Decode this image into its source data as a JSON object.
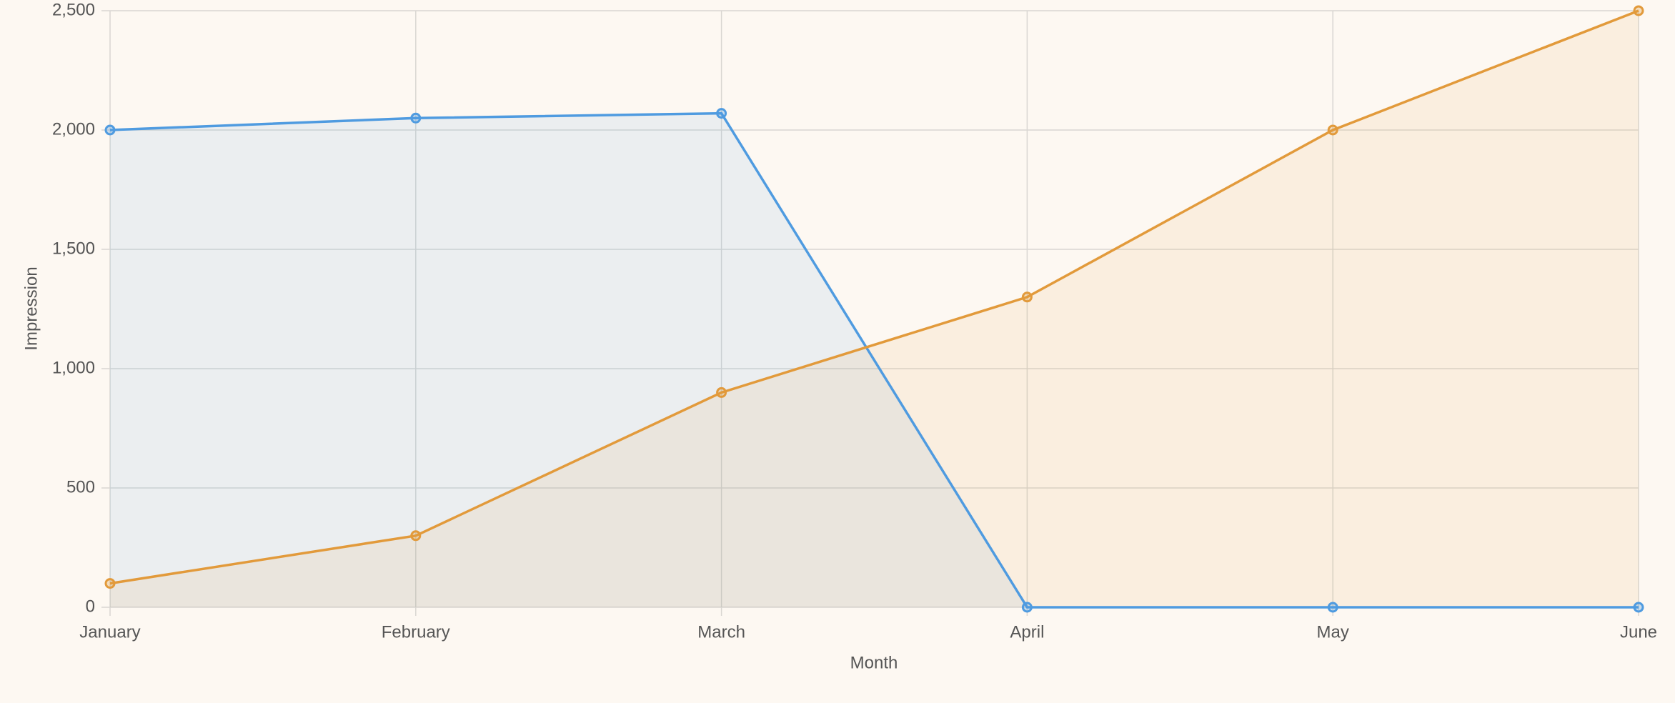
{
  "chart_data": {
    "type": "area",
    "x_label": "Month",
    "y_label": "Impression",
    "categories": [
      "January",
      "February",
      "March",
      "April",
      "May",
      "June"
    ],
    "series": [
      {
        "color": "#4f9be0",
        "values": [
          2000,
          2050,
          2070,
          0,
          0,
          0
        ]
      },
      {
        "color": "#e29a3b",
        "values": [
          100,
          300,
          900,
          1300,
          2000,
          2500
        ]
      }
    ],
    "ylim": [
      0,
      2500
    ],
    "yticks": [
      0,
      500,
      {
        "value": 1000,
        "label": "1,000"
      },
      {
        "value": 1500,
        "label": "1,500"
      },
      {
        "value": 2000,
        "label": "2,000"
      },
      {
        "value": 2500,
        "label": "2,500"
      }
    ],
    "grid": true
  }
}
